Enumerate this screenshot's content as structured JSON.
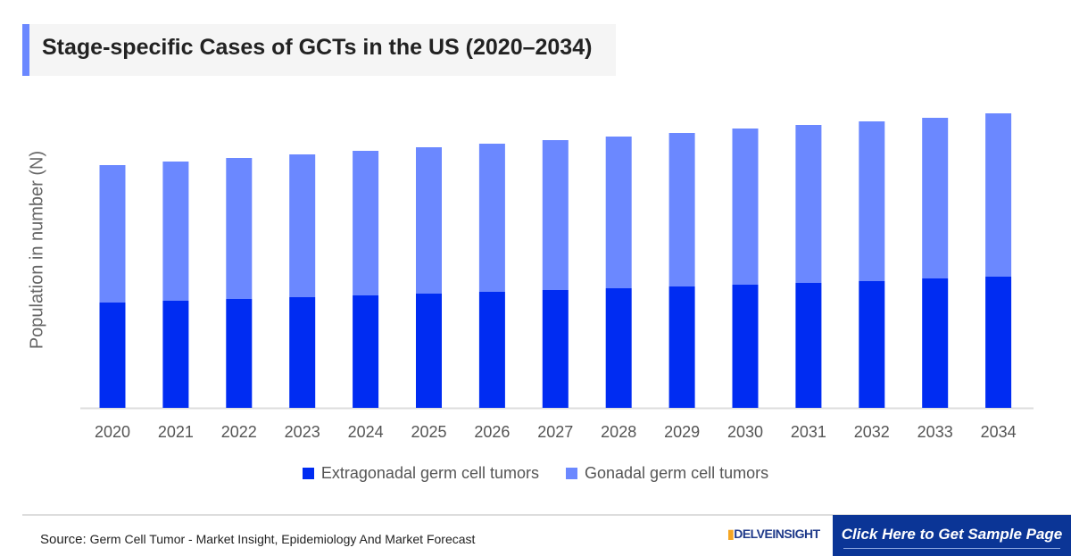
{
  "title": "Stage-specific Cases of GCTs in the US (2020–2034)",
  "chart_data": {
    "type": "bar",
    "stacked": true,
    "title": "Stage-specific Cases of GCTs in the US (2020–2034)",
    "xlabel": "",
    "ylabel": "Population in number (N)",
    "ylim": [
      0,
      350
    ],
    "y_ticks_shown": false,
    "grid": false,
    "legend_placement": "bottom",
    "categories": [
      "2020",
      "2021",
      "2022",
      "2023",
      "2024",
      "2025",
      "2026",
      "2027",
      "2028",
      "2029",
      "2030",
      "2031",
      "2032",
      "2033",
      "2034"
    ],
    "series": [
      {
        "name": "Extragonadal germ cell tumors",
        "color": "#002cf2",
        "values": [
          118,
          120,
          122,
          124,
          126,
          128,
          130,
          132,
          134,
          136,
          138,
          140,
          142,
          145,
          147
        ]
      },
      {
        "name": "Gonadal germ cell tumors",
        "color": "#6b88ff",
        "values": [
          154,
          156,
          158,
          160,
          162,
          164,
          166,
          168,
          170,
          172,
          175,
          177,
          179,
          180,
          183
        ]
      }
    ]
  },
  "footer": {
    "source_label": "Source:",
    "source_text": "Germ Cell Tumor - Market Insight, Epidemiology And Market Forecast",
    "logo": "DELVEINSIGHT",
    "cta": "Click Here to Get Sample Page"
  }
}
